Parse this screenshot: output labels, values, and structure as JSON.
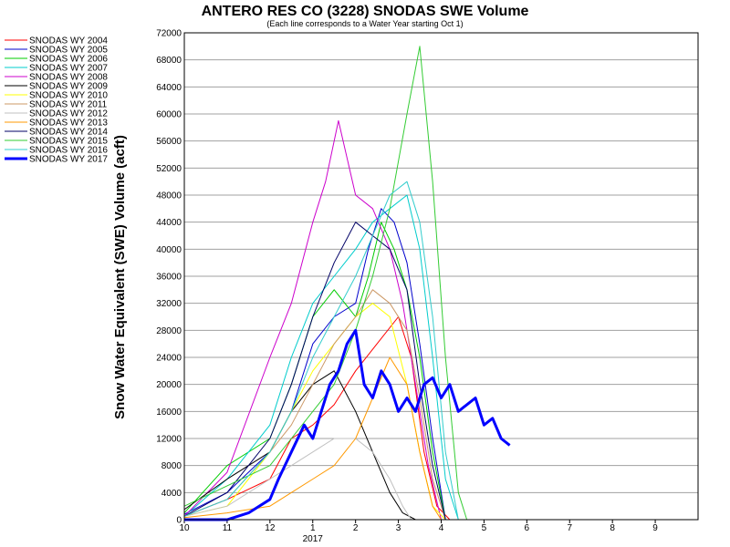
{
  "chart_data": {
    "type": "line",
    "title": "ANTERO RES CO (3228) SNODAS SWE Volume",
    "subtitle": "(Each line corresponds to a Water Year starting Oct 1)",
    "ylabel": "Snow Water Equivalent (SWE) Volume (acft)",
    "xlabel": "",
    "ylim": [
      0,
      72000
    ],
    "y_ticks": [
      0,
      4000,
      8000,
      12000,
      16000,
      20000,
      24000,
      28000,
      32000,
      36000,
      40000,
      44000,
      48000,
      52000,
      56000,
      60000,
      64000,
      68000,
      72000
    ],
    "x_ticks": [
      "10",
      "11",
      "12",
      "1",
      "2",
      "3",
      "4",
      "5",
      "6",
      "7",
      "8",
      "9"
    ],
    "x_year_label": "2017",
    "grid": "horizontal",
    "legend_position": "left",
    "x_unit": "month of water year (0 = Oct 1)",
    "series": [
      {
        "name": "SNODAS WY 2004",
        "color": "#ff0000",
        "x": [
          0,
          1,
          2,
          2.5,
          3,
          3.5,
          4,
          4.5,
          5,
          5.3,
          5.6,
          5.9,
          6.2
        ],
        "values": [
          500,
          3000,
          6000,
          12000,
          14000,
          17000,
          22000,
          26000,
          30000,
          24000,
          10000,
          2000,
          0
        ]
      },
      {
        "name": "SNODAS WY 2005",
        "color": "#0000cc",
        "x": [
          0,
          1,
          2,
          2.5,
          3,
          3.5,
          4,
          4.3,
          4.6,
          4.9,
          5.2,
          5.5,
          5.8,
          6.1
        ],
        "values": [
          800,
          4000,
          10000,
          16000,
          26000,
          30000,
          32000,
          40000,
          46000,
          44000,
          38000,
          26000,
          12000,
          0
        ]
      },
      {
        "name": "SNODAS WY 2006",
        "color": "#00cc00",
        "x": [
          0,
          1,
          2,
          2.5,
          3,
          3.5,
          4,
          4.3,
          4.6,
          4.9,
          5.2,
          5.5,
          5.8,
          6.1
        ],
        "values": [
          1000,
          8000,
          12000,
          20000,
          30000,
          34000,
          30000,
          36000,
          44000,
          40000,
          34000,
          24000,
          10000,
          0
        ]
      },
      {
        "name": "SNODAS WY 2007",
        "color": "#00cccc",
        "x": [
          0,
          1,
          2,
          2.5,
          3,
          3.5,
          4,
          4.4,
          4.8,
          5.2,
          5.5,
          5.8,
          6.1,
          6.4
        ],
        "values": [
          500,
          6000,
          14000,
          24000,
          32000,
          36000,
          40000,
          44000,
          46000,
          48000,
          40000,
          24000,
          6000,
          0
        ]
      },
      {
        "name": "SNODAS WY 2008",
        "color": "#cc00cc",
        "x": [
          0,
          1,
          2,
          2.5,
          3,
          3.3,
          3.6,
          4,
          4.4,
          4.8,
          5.1,
          5.4,
          5.7,
          6.0
        ],
        "values": [
          500,
          7000,
          24000,
          32000,
          44000,
          50000,
          59000,
          48000,
          46000,
          40000,
          32000,
          20000,
          8000,
          0
        ]
      },
      {
        "name": "SNODAS WY 2009",
        "color": "#000000",
        "x": [
          0,
          1,
          2,
          2.5,
          3,
          3.5,
          4,
          4.4,
          4.8,
          5.1,
          5.4,
          5.7
        ],
        "values": [
          1500,
          6000,
          10000,
          16000,
          20000,
          22000,
          16000,
          10000,
          4000,
          1000,
          0,
          0
        ]
      },
      {
        "name": "SNODAS WY 2010",
        "color": "#ffff00",
        "x": [
          0,
          1,
          2,
          2.5,
          3,
          3.5,
          4,
          4.4,
          4.8,
          5.2,
          5.5,
          5.8,
          6.1
        ],
        "values": [
          500,
          2000,
          10000,
          16000,
          22000,
          26000,
          30000,
          32000,
          30000,
          20000,
          10000,
          2000,
          0
        ]
      },
      {
        "name": "SNODAS WY 2011",
        "color": "#cc9966",
        "x": [
          0,
          1,
          2,
          2.5,
          3,
          3.5,
          4,
          4.4,
          4.8,
          5.2,
          5.5,
          5.8,
          6.1
        ],
        "values": [
          500,
          3000,
          10000,
          14000,
          20000,
          26000,
          30000,
          34000,
          32000,
          28000,
          18000,
          6000,
          0
        ]
      },
      {
        "name": "SNODAS WY 2012",
        "color": "#c0c0c0",
        "x": [
          0,
          1,
          2,
          2.5,
          3,
          3.5,
          4,
          4.4,
          4.8,
          5.1,
          5.3
        ],
        "values": [
          500,
          2000,
          6000,
          8000,
          10000,
          12000,
          12000,
          10000,
          6000,
          2000,
          0
        ]
      },
      {
        "name": "SNODAS WY 2013",
        "color": "#ff9900",
        "x": [
          0,
          1,
          2,
          2.5,
          3,
          3.5,
          4,
          4.4,
          4.8,
          5.2,
          5.5,
          5.8,
          6.0
        ],
        "values": [
          300,
          1000,
          2000,
          4000,
          6000,
          8000,
          12000,
          18000,
          24000,
          20000,
          10000,
          2000,
          0
        ]
      },
      {
        "name": "SNODAS WY 2014",
        "color": "#000066",
        "x": [
          0,
          1,
          2,
          2.5,
          3,
          3.5,
          4,
          4.4,
          4.8,
          5.2,
          5.5,
          5.8,
          6.1
        ],
        "values": [
          500,
          4000,
          12000,
          20000,
          30000,
          38000,
          44000,
          42000,
          40000,
          34000,
          20000,
          8000,
          0
        ]
      },
      {
        "name": "SNODAS WY 2015",
        "color": "#33cc33",
        "x": [
          0,
          1,
          2,
          2.5,
          3,
          3.5,
          4,
          4.4,
          4.8,
          5.2,
          5.5,
          5.8,
          6.1,
          6.4,
          6.6
        ],
        "values": [
          2000,
          5000,
          8000,
          12000,
          16000,
          20000,
          28000,
          36000,
          46000,
          60000,
          70000,
          50000,
          24000,
          4000,
          0
        ]
      },
      {
        "name": "SNODAS WY 2016",
        "color": "#33cccc",
        "x": [
          0,
          1,
          2,
          2.5,
          3,
          3.5,
          4,
          4.4,
          4.8,
          5.2,
          5.5,
          5.8,
          6.1,
          6.4
        ],
        "values": [
          500,
          3000,
          10000,
          16000,
          24000,
          30000,
          36000,
          42000,
          48000,
          50000,
          44000,
          30000,
          10000,
          0
        ]
      },
      {
        "name": "SNODAS WY 2017",
        "color": "#0000ff",
        "x": [
          0,
          0.5,
          1,
          1.5,
          2,
          2.2,
          2.5,
          2.8,
          3,
          3.2,
          3.4,
          3.6,
          3.8,
          4,
          4.2,
          4.4,
          4.6,
          4.8,
          5.0,
          5.2,
          5.4,
          5.6,
          5.8,
          6.0,
          6.2,
          6.4,
          6.6,
          6.8,
          7.0,
          7.2,
          7.4,
          7.6
        ],
        "values": [
          0,
          0,
          0,
          1000,
          3000,
          6000,
          10000,
          14000,
          12000,
          16000,
          20000,
          22000,
          26000,
          28000,
          20000,
          18000,
          22000,
          20000,
          16000,
          18000,
          16000,
          20000,
          21000,
          18000,
          20000,
          16000,
          17000,
          18000,
          14000,
          15000,
          12000,
          11000
        ],
        "bold": true
      }
    ]
  }
}
